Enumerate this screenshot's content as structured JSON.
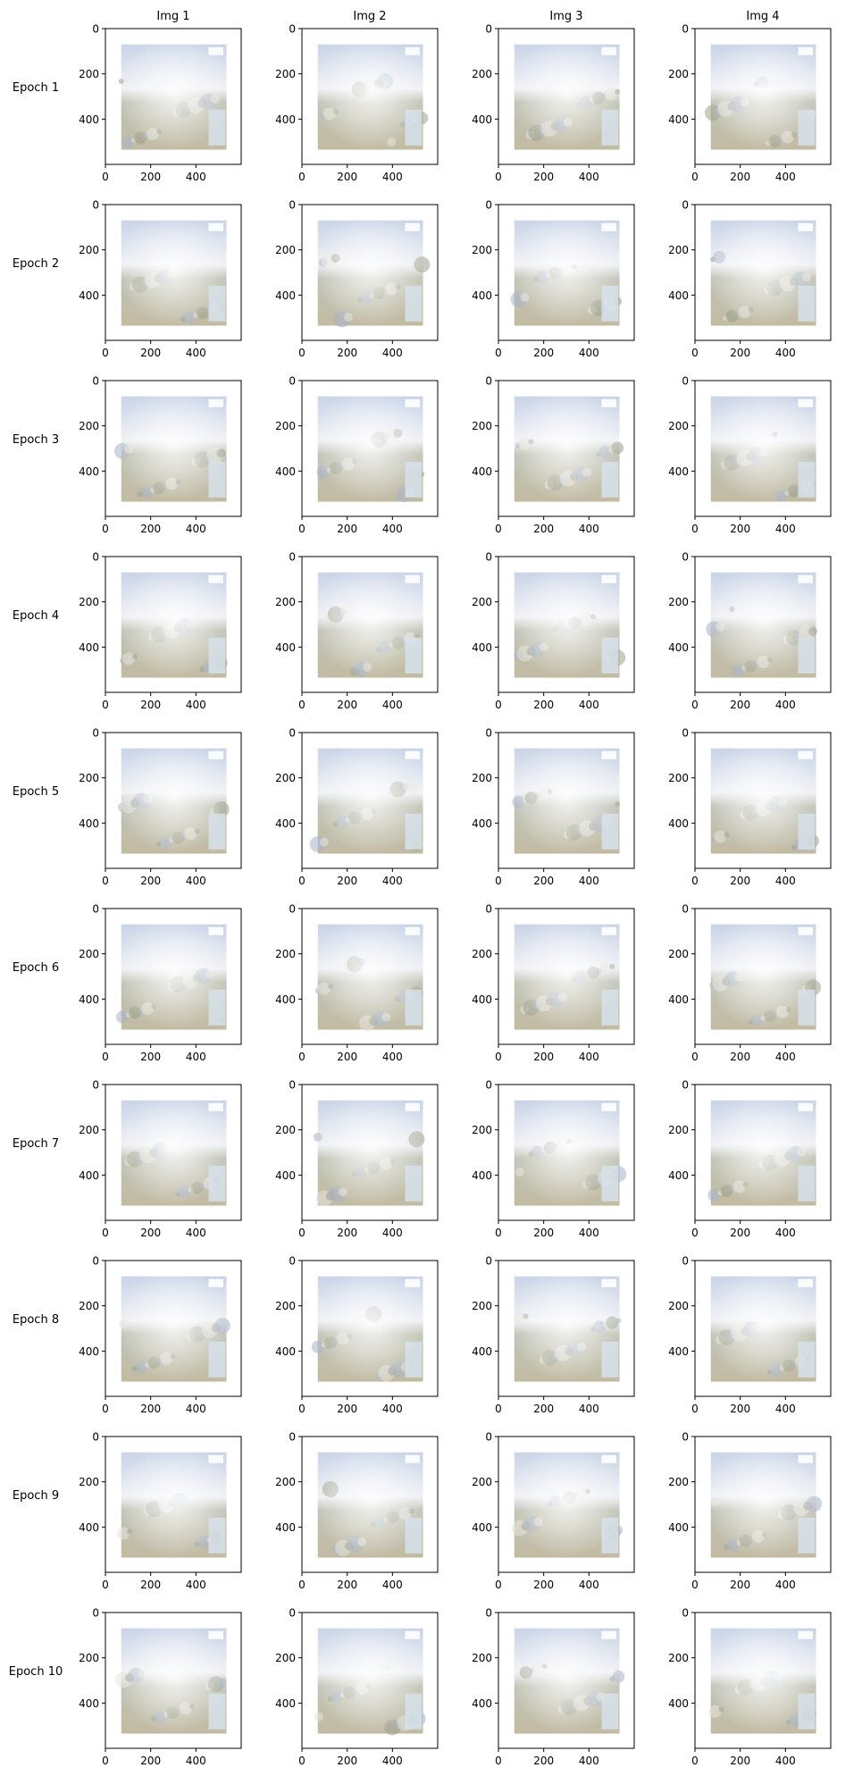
{
  "columns": [
    "Img 1",
    "Img 2",
    "Img 3",
    "Img 4"
  ],
  "rows": [
    "Epoch 1",
    "Epoch 2",
    "Epoch 3",
    "Epoch 4",
    "Epoch 5",
    "Epoch 6",
    "Epoch 7",
    "Epoch 8",
    "Epoch 9",
    "Epoch 10"
  ],
  "axes": {
    "x_ticks": [
      0,
      200,
      400
    ],
    "y_ticks": [
      0,
      200,
      400
    ],
    "x_range": [
      0,
      600
    ],
    "y_range": [
      600,
      0
    ],
    "image_extent": {
      "x": [
        70,
        535
      ],
      "y": [
        70,
        535
      ]
    }
  },
  "colors": {
    "sky": "#c9d4e8",
    "ground": "#c2bba3",
    "haze": "#eef0f3",
    "panel_frame": "#000000",
    "inset": "#d6e2ea"
  },
  "icons": {
    "tile": "generated-sample-image-icon"
  }
}
